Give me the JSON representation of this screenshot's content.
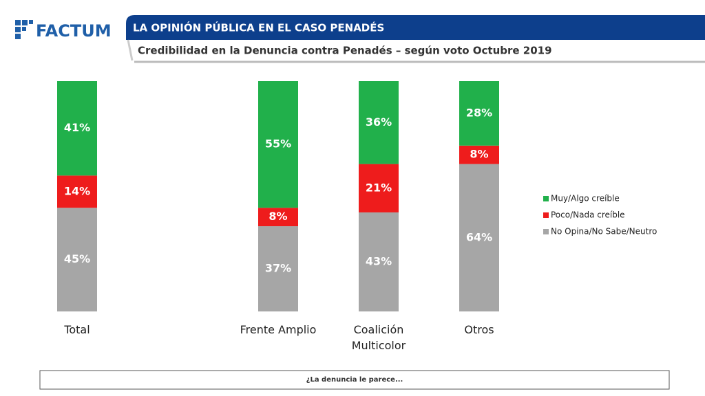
{
  "brand": "FACTUM",
  "chart_data": {
    "type": "stacked_bar",
    "title": "LA OPINIÓN PÚBLICA EN EL CASO PENADÉS",
    "subtitle": "Credibilidad en la Denuncia contra Penadés – según voto Octubre 2019",
    "annotation": "¿La denuncia le parece...",
    "categories": [
      "Total",
      "Frente Amplio",
      "Coalición Multicolor",
      "Otros"
    ],
    "series": [
      {
        "name": "Muy/Algo creíble",
        "color": "#21b04b",
        "values": [
          41,
          55,
          36,
          28
        ],
        "value_labels": [
          "41%",
          "55%",
          "36%",
          "28%"
        ]
      },
      {
        "name": "Poco/Nada creíble",
        "color": "#ee1c1c",
        "values": [
          14,
          8,
          21,
          8
        ],
        "value_labels": [
          "14%",
          "8%",
          "21%",
          "8%"
        ]
      },
      {
        "name": "No Opina/No Sabe/Neutro",
        "color": "#a6a6a6",
        "values": [
          45,
          37,
          43,
          64
        ],
        "value_labels": [
          "45%",
          "37%",
          "43%",
          "64%"
        ]
      }
    ],
    "legend": "right"
  }
}
